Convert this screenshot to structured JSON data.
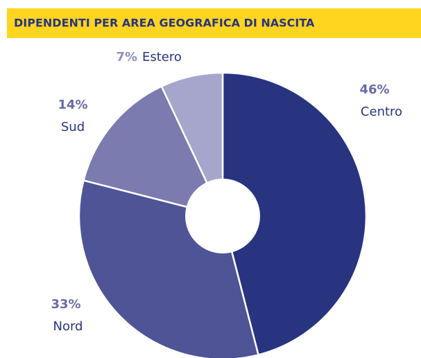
{
  "chart_data": {
    "type": "pie",
    "title": "DIPENDENTI PER AREA GEOGRAFICA DI NASCITA",
    "categories": [
      "Centro",
      "Nord",
      "Sud",
      "Estero"
    ],
    "values": [
      46,
      33,
      14,
      7
    ],
    "value_labels": [
      "46%",
      "33%",
      "14%",
      "7%"
    ],
    "colors": [
      "#283480",
      "#4f5496",
      "#7b7bb0",
      "#a6a6cc"
    ]
  }
}
